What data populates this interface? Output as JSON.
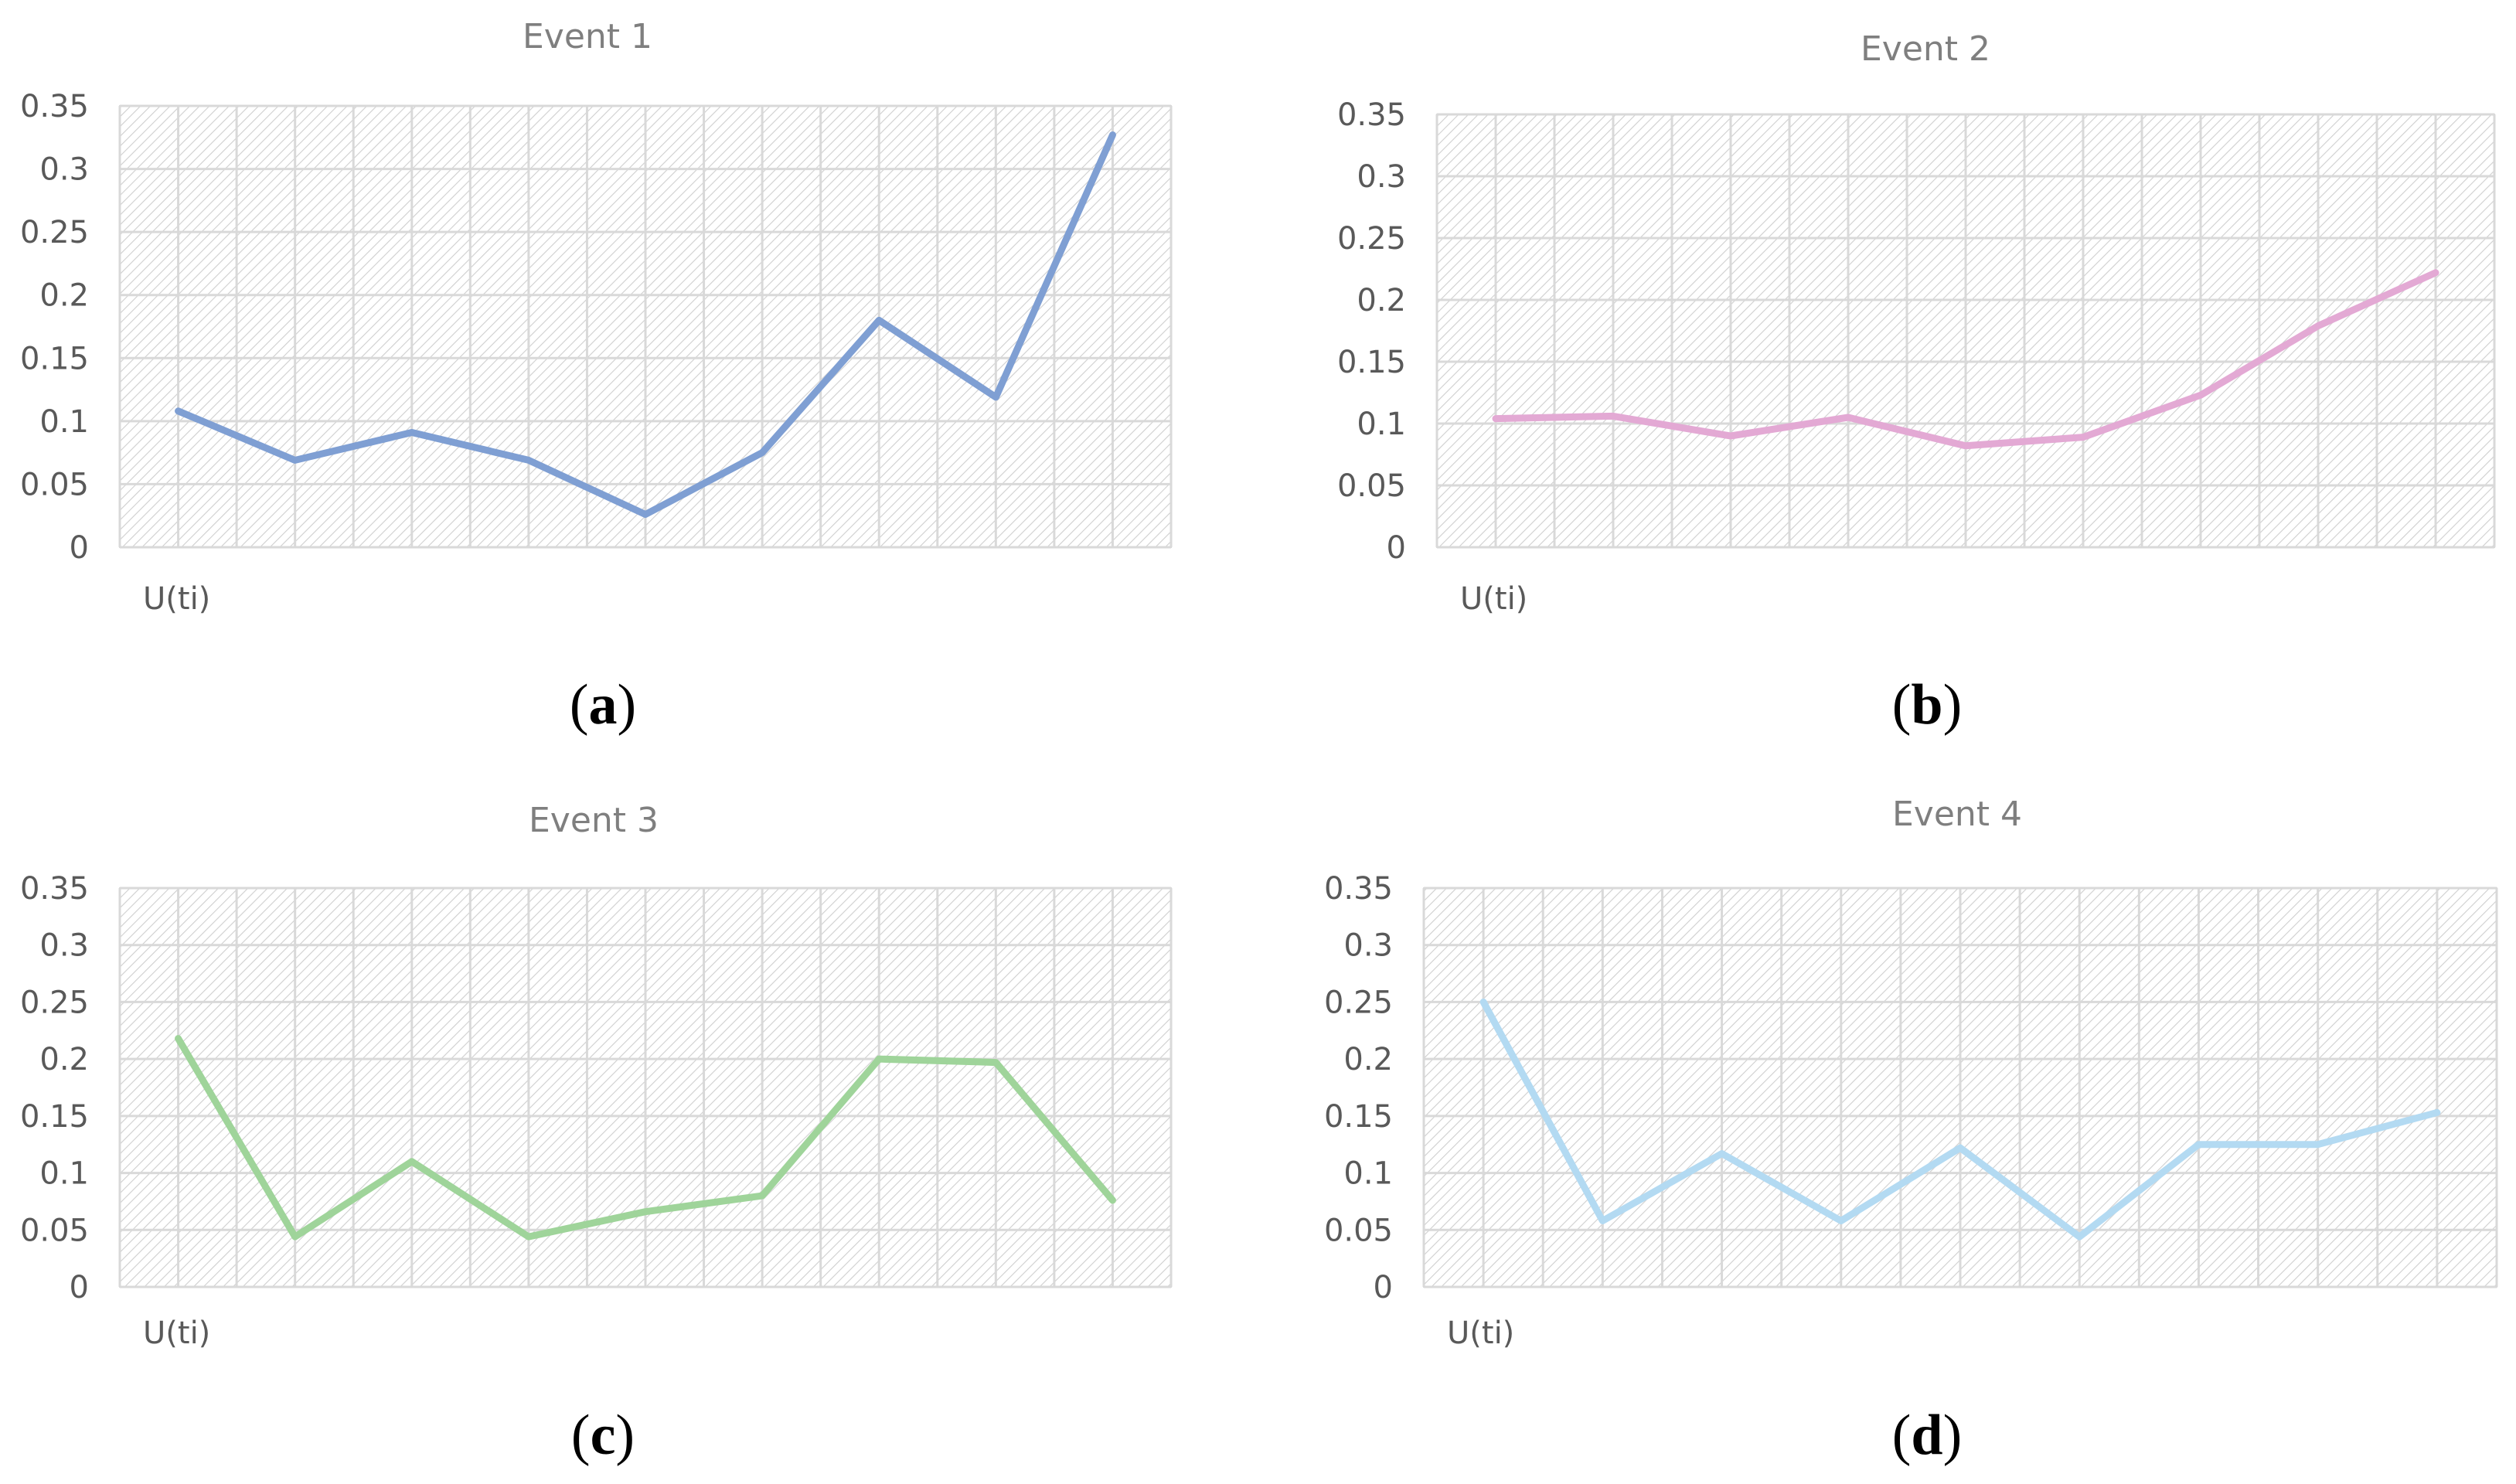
{
  "chart_data": [
    {
      "type": "line",
      "title": "Event 1",
      "xlabel": "U(ti)",
      "caption_letter": "a",
      "ylim": [
        0,
        0.35
      ],
      "yticks": [
        "0",
        "0.05",
        "0.1",
        "0.15",
        "0.2",
        "0.25",
        "0.3",
        "0.35"
      ],
      "grid": true,
      "series": [
        {
          "color": "#7f9fd3",
          "values": [
            0.108,
            0.069,
            0.091,
            0.069,
            0.026,
            0.075,
            0.18,
            0.119,
            0.327
          ]
        }
      ]
    },
    {
      "type": "line",
      "title": "Event 2",
      "xlabel": "U(ti)",
      "caption_letter": "b",
      "ylim": [
        0,
        0.35
      ],
      "yticks": [
        "0",
        "0.05",
        "0.1",
        "0.15",
        "0.2",
        "0.25",
        "0.3",
        "0.35"
      ],
      "grid": true,
      "series": [
        {
          "color": "#e3a9d4",
          "values": [
            0.104,
            0.106,
            0.09,
            0.105,
            0.082,
            0.089,
            0.123,
            0.179,
            0.222
          ]
        }
      ]
    },
    {
      "type": "line",
      "title": "Event 3",
      "xlabel": "U(ti)",
      "caption_letter": "c",
      "ylim": [
        0,
        0.35
      ],
      "yticks": [
        "0",
        "0.05",
        "0.1",
        "0.15",
        "0.2",
        "0.25",
        "0.3",
        "0.35"
      ],
      "grid": true,
      "series": [
        {
          "color": "#9fd49a",
          "values": [
            0.218,
            0.044,
            0.11,
            0.044,
            0.066,
            0.08,
            0.2,
            0.197,
            0.076
          ]
        }
      ]
    },
    {
      "type": "line",
      "title": "Event 4",
      "xlabel": "U(ti)",
      "caption_letter": "d",
      "ylim": [
        0,
        0.35
      ],
      "yticks": [
        "0",
        "0.05",
        "0.1",
        "0.15",
        "0.2",
        "0.25",
        "0.3",
        "0.35"
      ],
      "grid": true,
      "series": [
        {
          "color": "#b3daf2",
          "values": [
            0.25,
            0.058,
            0.117,
            0.058,
            0.122,
            0.044,
            0.125,
            0.125,
            0.153
          ]
        }
      ]
    }
  ]
}
